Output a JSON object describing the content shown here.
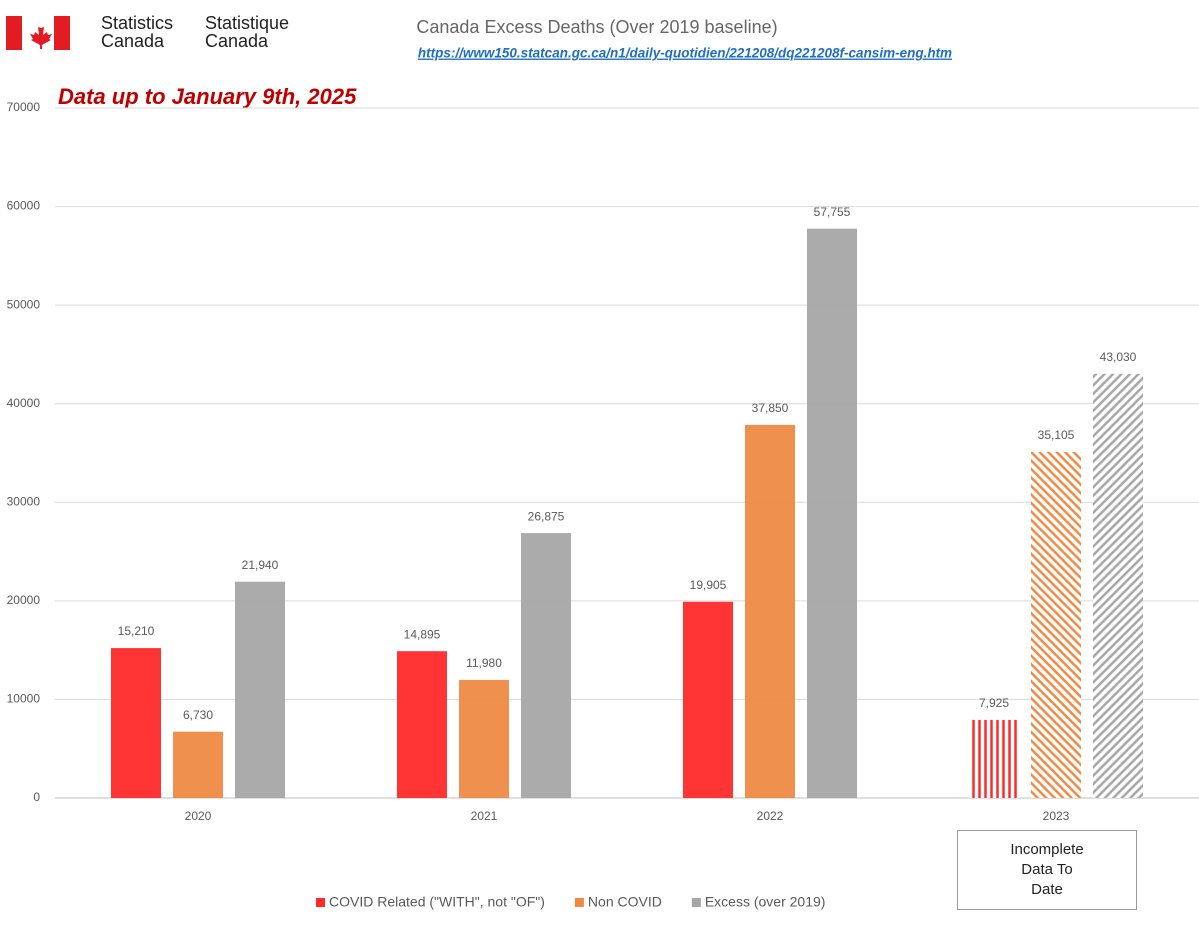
{
  "header": {
    "agency_en_lines": [
      "Statistics",
      "Canada"
    ],
    "agency_fr_lines": [
      "Statistique",
      "Canada"
    ]
  },
  "chart_data": {
    "type": "bar",
    "title": "Canada Excess Deaths (Over 2019 baseline)",
    "source": "https://www150.statcan.gc.ca/n1/daily-quotidien/221208/dq221208f-cansim-eng.htm",
    "subtitle": "Data up to January 9th, 2025",
    "categories": [
      "2020",
      "2021",
      "2022",
      "2023"
    ],
    "hatched": [
      false,
      false,
      false,
      true
    ],
    "series": [
      {
        "name": "COVID Related (\"WITH\", not \"OF\")",
        "color": "#ff2a2a",
        "hatch_angle": 0,
        "values": [
          15210,
          14895,
          19905,
          7925
        ],
        "value_labels": [
          "15,210",
          "14,895",
          "19,905",
          "7,925"
        ]
      },
      {
        "name": "Non COVID",
        "color": "#ef8a45",
        "hatch_angle": -45,
        "values": [
          6730,
          11980,
          37850,
          35105
        ],
        "value_labels": [
          "6,730",
          "11,980",
          "37,850",
          "35,105"
        ]
      },
      {
        "name": "Excess (over 2019)",
        "color": "#a6a6a6",
        "hatch_angle": 45,
        "values": [
          21940,
          26875,
          57755,
          43030
        ],
        "value_labels": [
          "21,940",
          "26,875",
          "57,755",
          "43,030"
        ]
      }
    ],
    "ylim": [
      0,
      70000
    ],
    "yticks": [
      0,
      10000,
      20000,
      30000,
      40000,
      50000,
      60000,
      70000
    ],
    "grid": true,
    "annotation_lines": [
      "Incomplete",
      "Data To",
      "Date"
    ]
  }
}
